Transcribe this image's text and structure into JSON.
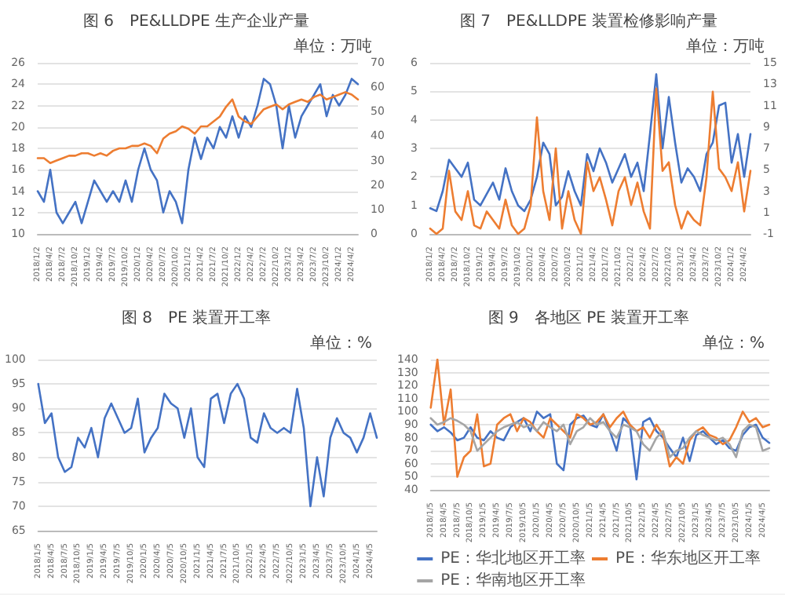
{
  "chart_data": [
    {
      "type": "line",
      "title": "图 6　PE&LLDPE 生产企业产量",
      "subtitle": "单位：万吨",
      "categories": [
        "2018/1/2",
        null,
        "2018/4/2",
        null,
        "2018/7/2",
        null,
        "2018/10/2",
        null,
        "2019/1/2",
        null,
        "2019/4/2",
        null,
        "2019/7/2",
        null,
        "2019/10/2",
        null,
        "2020/1/2",
        null,
        "2020/4/2",
        null,
        "2020/7/2",
        null,
        "2020/10/2",
        null,
        "2021/1/2",
        null,
        "2021/4/2",
        null,
        "2021/7/2",
        null,
        "2021/10/2",
        null,
        "2022/1/2",
        null,
        "2022/4/2",
        null,
        "2022/7/2",
        null,
        "2022/10/2",
        null,
        "2023/1/2",
        null,
        "2023/4/2",
        null,
        "2023/7/2",
        null,
        "2023/10/2",
        null,
        "2024/1/2",
        null,
        "2024/4/2",
        null
      ],
      "series": [
        {
          "color": "#4472c4",
          "values": [
            14,
            13,
            16,
            12,
            11,
            12,
            13,
            11,
            13,
            15,
            14,
            13,
            14,
            13,
            15,
            13,
            16,
            18,
            16,
            15,
            12,
            14,
            13,
            11,
            16,
            19,
            17,
            19,
            18,
            20,
            19,
            21,
            19,
            21,
            20,
            22,
            24.5,
            24,
            22,
            18,
            22,
            19,
            21,
            22,
            23,
            24,
            21,
            23,
            22,
            23,
            24.5,
            24
          ]
        },
        {
          "color": "#ed7d31",
          "axis": "y2",
          "values": [
            31,
            31,
            29,
            30,
            31,
            32,
            32,
            33,
            33,
            32,
            33,
            32,
            34,
            35,
            35,
            36,
            36,
            37,
            36,
            33,
            39,
            41,
            42,
            44,
            43,
            41,
            44,
            44,
            46,
            48,
            52,
            55,
            48,
            46,
            45,
            48,
            51,
            52,
            53,
            51,
            53,
            54,
            55,
            54,
            56,
            57,
            55,
            56,
            57,
            58,
            57,
            55
          ]
        }
      ],
      "ylim": [
        10,
        26
      ],
      "yticks": [
        10,
        12,
        14,
        16,
        18,
        20,
        22,
        24,
        26
      ],
      "y2lim": [
        0,
        70
      ],
      "y2ticks": [
        0,
        10,
        20,
        30,
        40,
        50,
        60,
        70
      ],
      "grid": "y",
      "marker": "none"
    },
    {
      "type": "line",
      "title": "图 7　PE&LLDPE 装置检修影响产量",
      "subtitle": "单位：万吨",
      "categories": [
        "2018/1/2",
        null,
        "2018/4/2",
        null,
        "2018/7/2",
        null,
        "2018/10/2",
        null,
        "2019/1/2",
        null,
        "2019/4/2",
        null,
        "2019/7/2",
        null,
        "2019/10/2",
        null,
        "2020/1/2",
        null,
        "2020/4/2",
        null,
        "2020/7/2",
        null,
        "2020/10/2",
        null,
        "2021/1/2",
        null,
        "2021/4/2",
        null,
        "2021/7/2",
        null,
        "2021/10/2",
        null,
        "2022/1/2",
        null,
        "2022/4/2",
        null,
        "2022/7/2",
        null,
        "2022/10/2",
        null,
        "2023/1/2",
        null,
        "2023/4/2",
        null,
        "2023/7/2",
        null,
        "2023/10/2",
        null,
        "2024/1/2",
        null,
        "2024/4/2",
        null
      ],
      "series": [
        {
          "color": "#4472c4",
          "values": [
            0.9,
            0.8,
            1.5,
            2.6,
            2.3,
            2.0,
            2.5,
            1.2,
            1.0,
            1.4,
            1.8,
            1.2,
            2.3,
            1.5,
            1.0,
            0.8,
            1.2,
            2.0,
            3.2,
            2.8,
            1.0,
            1.3,
            2.2,
            1.5,
            1.0,
            2.8,
            2.2,
            3.0,
            2.5,
            1.8,
            2.3,
            2.8,
            2.0,
            2.5,
            1.5,
            3.5,
            5.6,
            3.0,
            4.8,
            3.2,
            1.8,
            2.3,
            2.0,
            1.5,
            2.8,
            3.2,
            4.5,
            4.6,
            2.5,
            3.5,
            2.0,
            3.5
          ]
        },
        {
          "color": "#ed7d31",
          "axis": "y2",
          "values": [
            -0.5,
            -1,
            -0.5,
            4.9,
            1.1,
            0.3,
            3,
            -0.2,
            -0.5,
            1.1,
            0.3,
            -0.5,
            2.2,
            -0.2,
            -1,
            -0.5,
            1.7,
            9.9,
            3,
            0.3,
            7,
            -0.5,
            3,
            0.3,
            -1,
            5.7,
            3,
            4.3,
            2.2,
            -0.2,
            3,
            4.3,
            1.7,
            3.8,
            1.1,
            -0.5,
            12.6,
            4.9,
            5.7,
            1.7,
            -0.5,
            1.1,
            0.3,
            -0.2,
            4.3,
            12.3,
            5.1,
            4.3,
            3,
            5.7,
            1.1,
            4.9
          ]
        }
      ],
      "ylim": [
        0,
        6
      ],
      "yticks": [
        0,
        1,
        2,
        3,
        4,
        5,
        6
      ],
      "y2lim": [
        -1,
        15
      ],
      "y2ticks": [
        -1,
        1,
        3,
        5,
        7,
        9,
        11,
        13,
        15
      ],
      "grid": "y",
      "marker": "none"
    },
    {
      "type": "line",
      "title": "图 8　PE 装置开工率",
      "subtitle": "单位：%",
      "categories": [
        "2018/1/5",
        null,
        "2018/4/5",
        null,
        "2018/7/5",
        null,
        "2018/10/5",
        null,
        "2019/1/5",
        null,
        "2019/4/5",
        null,
        "2019/7/5",
        null,
        "2019/10/5",
        null,
        "2020/1/5",
        null,
        "2020/4/5",
        null,
        "2020/7/5",
        null,
        "2020/10/5",
        null,
        "2021/1/5",
        null,
        "2021/4/5",
        null,
        "2021/7/5",
        null,
        "2021/10/5",
        null,
        "2022/1/5",
        null,
        "2022/4/5",
        null,
        "2022/7/5",
        null,
        "2022/10/5",
        null,
        "2023/1/5",
        null,
        "2023/4/5",
        null,
        "2023/7/5",
        null,
        "2023/10/5",
        null,
        "2024/1/5",
        null,
        "2024/4/5",
        null
      ],
      "series": [
        {
          "color": "#4472c4",
          "values": [
            95,
            87,
            89,
            80,
            77,
            78,
            84,
            82,
            86,
            80,
            88,
            91,
            88,
            85,
            86,
            92,
            81,
            84,
            86,
            93,
            91,
            90,
            84,
            90,
            80,
            78,
            92,
            93,
            87,
            93,
            95,
            92,
            84,
            83,
            89,
            86,
            85,
            86,
            85,
            94,
            86,
            70,
            80,
            72,
            84,
            88,
            85,
            84,
            81,
            84,
            89,
            84
          ]
        }
      ],
      "ylim": [
        65,
        100
      ],
      "yticks": [
        65,
        70,
        75,
        80,
        85,
        90,
        95,
        100
      ],
      "grid": "y",
      "marker": "none"
    },
    {
      "type": "line",
      "title": "图 9　各地区 PE 装置开工率",
      "subtitle": "单位：%",
      "categories": [
        "2018/1/5",
        null,
        "2018/4/5",
        null,
        "2018/7/5",
        null,
        "2018/10/5",
        null,
        "2019/1/5",
        null,
        "2019/4/5",
        null,
        "2019/7/5",
        null,
        "2019/10/5",
        null,
        "2020/1/5",
        null,
        "2020/4/5",
        null,
        "2020/7/5",
        null,
        "2020/10/5",
        null,
        "2021/1/5",
        null,
        "2021/4/5",
        null,
        "2021/7/5",
        null,
        "2021/10/5",
        null,
        "2022/1/5",
        null,
        "2022/4/5",
        null,
        "2022/7/5",
        null,
        "2022/10/5",
        null,
        "2023/1/5",
        null,
        "2023/4/5",
        null,
        "2023/7/5",
        null,
        "2023/10/5",
        null,
        "2024/1/5",
        null,
        "2024/4/5",
        null
      ],
      "series": [
        {
          "name": "PE：华北地区开工率",
          "color": "#4472c4",
          "values": [
            90,
            85,
            88,
            84,
            78,
            80,
            88,
            80,
            78,
            85,
            80,
            78,
            88,
            92,
            95,
            85,
            100,
            95,
            98,
            60,
            55,
            90,
            95,
            97,
            90,
            88,
            98,
            85,
            70,
            95,
            90,
            48,
            92,
            95,
            85,
            80,
            72,
            65,
            80,
            62,
            82,
            85,
            80,
            75,
            78,
            72,
            70,
            82,
            88,
            90,
            80,
            76
          ]
        },
        {
          "name": "PE：华东地区开工率",
          "color": "#ed7d31",
          "values": [
            103,
            140,
            90,
            117,
            50,
            65,
            70,
            98,
            58,
            60,
            90,
            95,
            98,
            85,
            95,
            92,
            85,
            80,
            95,
            90,
            85,
            80,
            98,
            95,
            90,
            92,
            98,
            88,
            95,
            100,
            90,
            85,
            88,
            80,
            90,
            82,
            58,
            65,
            60,
            78,
            85,
            88,
            82,
            80,
            75,
            78,
            88,
            100,
            92,
            95,
            88,
            90
          ]
        },
        {
          "name": "PE：华南地区开工率",
          "color": "#a5a5a5",
          "values": [
            95,
            90,
            92,
            95,
            93,
            90,
            85,
            70,
            75,
            80,
            85,
            88,
            90,
            92,
            88,
            90,
            85,
            92,
            88,
            85,
            90,
            75,
            85,
            88,
            95,
            90,
            92,
            85,
            80,
            90,
            88,
            85,
            75,
            70,
            80,
            85,
            65,
            70,
            72,
            80,
            85,
            82,
            80,
            78,
            80,
            75,
            65,
            85,
            90,
            88,
            70,
            72
          ]
        }
      ],
      "ylim": [
        40,
        140
      ],
      "yticks": [
        40,
        50,
        60,
        70,
        80,
        90,
        100,
        110,
        120,
        130,
        140
      ],
      "grid": "y",
      "legend": "bottom",
      "marker": "none"
    }
  ]
}
